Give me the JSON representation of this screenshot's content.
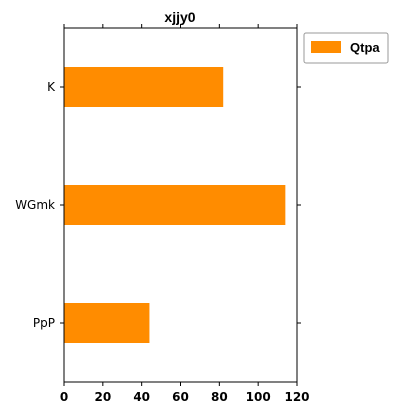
{
  "chart_data": {
    "type": "bar",
    "orientation": "horizontal",
    "title": "xjjy0",
    "categories": [
      "K",
      "WGmk",
      "PpP"
    ],
    "series": [
      {
        "name": "Qtpa",
        "values": [
          82,
          114,
          44
        ],
        "color": "#ff8c00"
      }
    ],
    "xlim": [
      0,
      120
    ],
    "x_ticks": [
      0,
      20,
      40,
      60,
      80,
      100,
      120
    ],
    "xlabel": "",
    "ylabel": "",
    "grid": false,
    "legend_position": "top-right-outside"
  }
}
